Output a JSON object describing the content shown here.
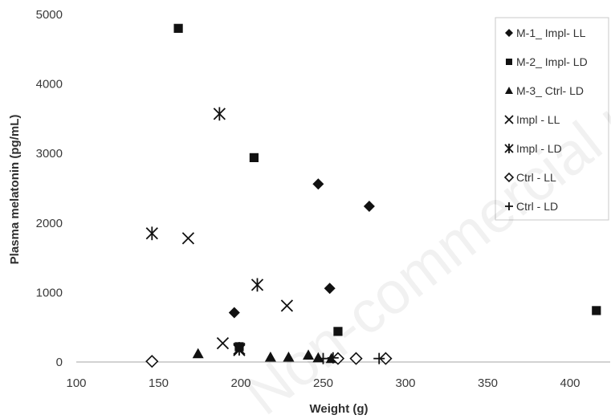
{
  "chart_data": {
    "type": "scatter",
    "xlabel": "Weight  (g)",
    "ylabel": "Plasma melatonin  (pg/mL)",
    "xlim": [
      100,
      420
    ],
    "ylim": [
      0,
      5000
    ],
    "xticks": [
      "100",
      "150",
      "200",
      "250",
      "300",
      "350",
      "400"
    ],
    "yticks": [
      "0",
      "1000",
      "2000",
      "3000",
      "4000",
      "5000"
    ],
    "grid": false,
    "legend_position": "top-right",
    "series": [
      {
        "name": "M-1_ Impl- LL",
        "marker": "diamond",
        "points": [
          [
            196,
            710
          ],
          [
            247,
            2560
          ],
          [
            254,
            1060
          ],
          [
            278,
            2240
          ]
        ]
      },
      {
        "name": "M-2_ Impl- LD",
        "marker": "square",
        "points": [
          [
            162,
            4800
          ],
          [
            199,
            220
          ],
          [
            208,
            2940
          ],
          [
            259,
            440
          ],
          [
            416,
            740
          ]
        ]
      },
      {
        "name": "M-3_ Ctrl- LD",
        "marker": "triangle",
        "points": [
          [
            174,
            120
          ],
          [
            218,
            70
          ],
          [
            229,
            70
          ],
          [
            241,
            100
          ],
          [
            247,
            60
          ],
          [
            255,
            50
          ]
        ]
      },
      {
        "name": "Impl - LL",
        "marker": "x",
        "points": [
          [
            168,
            1780
          ],
          [
            189,
            270
          ],
          [
            199,
            170
          ],
          [
            228,
            810
          ]
        ]
      },
      {
        "name": "Impl - LD",
        "marker": "star",
        "points": [
          [
            146,
            1850
          ],
          [
            187,
            3570
          ],
          [
            199,
            190
          ],
          [
            210,
            1110
          ]
        ]
      },
      {
        "name": "Ctrl - LL",
        "marker": "open-diamond",
        "points": [
          [
            146,
            10
          ],
          [
            259,
            50
          ],
          [
            270,
            50
          ],
          [
            288,
            50
          ]
        ]
      },
      {
        "name": "Ctrl - LD",
        "marker": "plus",
        "points": [
          [
            250,
            50
          ],
          [
            256,
            60
          ],
          [
            284,
            50
          ]
        ]
      }
    ]
  },
  "watermark_text": "Non-commercial use"
}
